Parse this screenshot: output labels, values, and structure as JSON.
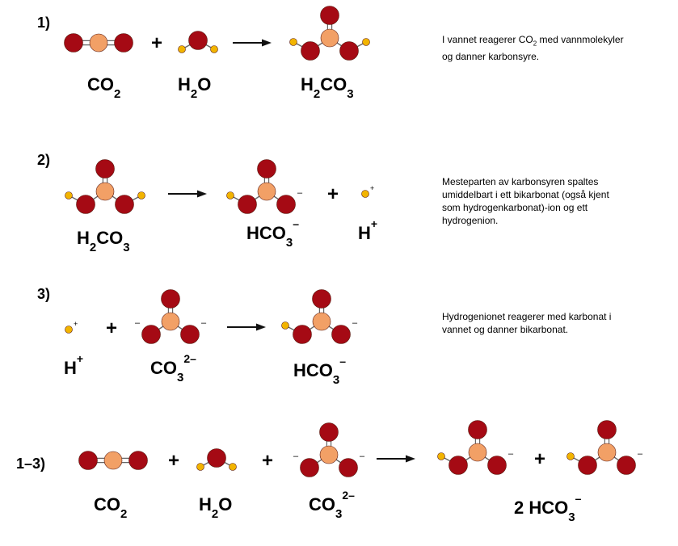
{
  "colors": {
    "oxygen": "#a50a14",
    "carbon": "#f2a066",
    "hydrogen": "#f2b400",
    "bond": "#666666",
    "text": "#000000"
  },
  "steps": [
    {
      "number": "1)",
      "equation": {
        "terms": [
          {
            "molecule": "CO2",
            "label": {
              "main": "CO",
              "sub": "2",
              "sup": ""
            }
          },
          {
            "operator": "+"
          },
          {
            "molecule": "H2O",
            "label": {
              "main": "H",
              "sub": "2",
              "tail": "O",
              "sup": ""
            }
          },
          {
            "operator": "arrow"
          },
          {
            "molecule": "H2CO3",
            "label": {
              "main": "H",
              "sub": "2",
              "tail": "CO",
              "sub2": "3",
              "sup": ""
            }
          }
        ]
      },
      "description": {
        "before_sub": "I vannet reagerer CO",
        "sub": "2",
        "after_sub": " med vannmolekyler",
        "line2": "og danner karbonsyre."
      }
    },
    {
      "number": "2)",
      "equation": {
        "terms": [
          {
            "molecule": "H2CO3",
            "label": {
              "main": "H",
              "sub": "2",
              "tail": "CO",
              "sub2": "3"
            }
          },
          {
            "operator": "arrow"
          },
          {
            "molecule": "HCO3-",
            "charge": "–",
            "label": {
              "main": "HCO",
              "sub": "3",
              "sup": "–"
            }
          },
          {
            "operator": "+"
          },
          {
            "molecule": "H+",
            "charge": "+",
            "label": {
              "main": "H",
              "sup": "+"
            }
          }
        ]
      },
      "description": {
        "lines": [
          "Mesteparten av karbonsyren spaltes",
          "umiddelbart  i ett bikarbonat (også kjent",
          "som hydrogenkarbonat)-ion og ett",
          "hydrogenion."
        ]
      }
    },
    {
      "number": "3)",
      "equation": {
        "terms": [
          {
            "molecule": "H+",
            "charge": "+",
            "label": {
              "main": "H",
              "sup": "+"
            }
          },
          {
            "operator": "+"
          },
          {
            "molecule": "CO3 2-",
            "charges": [
              "–",
              "–"
            ],
            "label": {
              "main": "CO",
              "sub": "3",
              "sup": "2–"
            }
          },
          {
            "operator": "arrow"
          },
          {
            "molecule": "HCO3-",
            "charge": "–",
            "label": {
              "main": "HCO",
              "sub": "3",
              "sup": "–"
            }
          }
        ]
      },
      "description": {
        "lines": [
          "Hydrogenionet reagerer med karbonat i",
          "vannet og danner bikarbonat."
        ]
      }
    },
    {
      "number": "1–3)",
      "equation": {
        "terms": [
          {
            "molecule": "CO2",
            "label": {
              "main": "CO",
              "sub": "2"
            }
          },
          {
            "operator": "+"
          },
          {
            "molecule": "H2O",
            "label": {
              "main": "H",
              "sub": "2",
              "tail": "O"
            }
          },
          {
            "operator": "+"
          },
          {
            "molecule": "CO3 2-",
            "charges": [
              "–",
              "–"
            ],
            "label": {
              "main": "CO",
              "sub": "3",
              "sup": "2–"
            }
          },
          {
            "operator": "arrow"
          },
          {
            "molecule": "HCO3-",
            "charge": "–",
            "label": null
          },
          {
            "operator": "+"
          },
          {
            "molecule": "HCO3-",
            "charge": "–",
            "label": {
              "main": "2 HCO",
              "sub": "3",
              "sup": "–"
            }
          }
        ]
      }
    }
  ]
}
